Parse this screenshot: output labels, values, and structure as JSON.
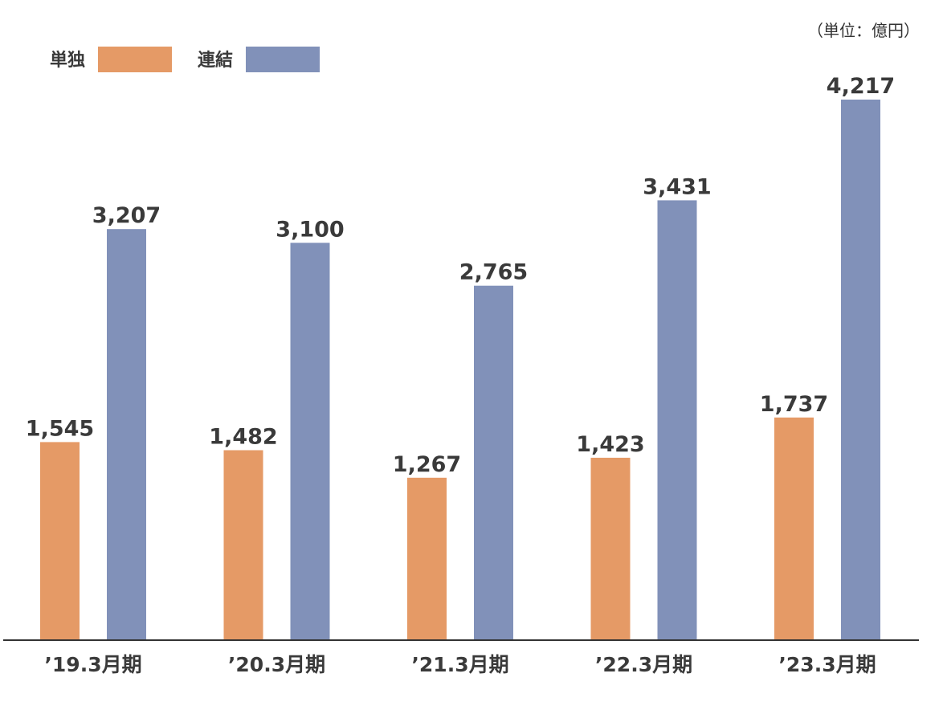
{
  "chart_data": {
    "type": "bar",
    "unit_label": "（単位：億円）",
    "categories": [
      "’19.3月期",
      "’20.3月期",
      "’21.3月期",
      "’22.3月期",
      "’23.3月期"
    ],
    "series": [
      {
        "name": "単独",
        "values": [
          1545,
          1482,
          1267,
          1423,
          1737
        ],
        "labels": [
          "1,545",
          "1,482",
          "1,267",
          "1,423",
          "1,737"
        ]
      },
      {
        "name": "連結",
        "values": [
          3207,
          3100,
          2765,
          3431,
          4217
        ],
        "labels": [
          "3,207",
          "3,100",
          "2,765",
          "3,431",
          "4,217"
        ]
      }
    ],
    "ylim": [
      0,
      4500
    ],
    "grid": false,
    "legend_position": "top-left"
  },
  "colors": {
    "単独": "#e59a66",
    "連結": "#8191b9",
    "axis": "#333333",
    "text": "#3a3a3a"
  }
}
